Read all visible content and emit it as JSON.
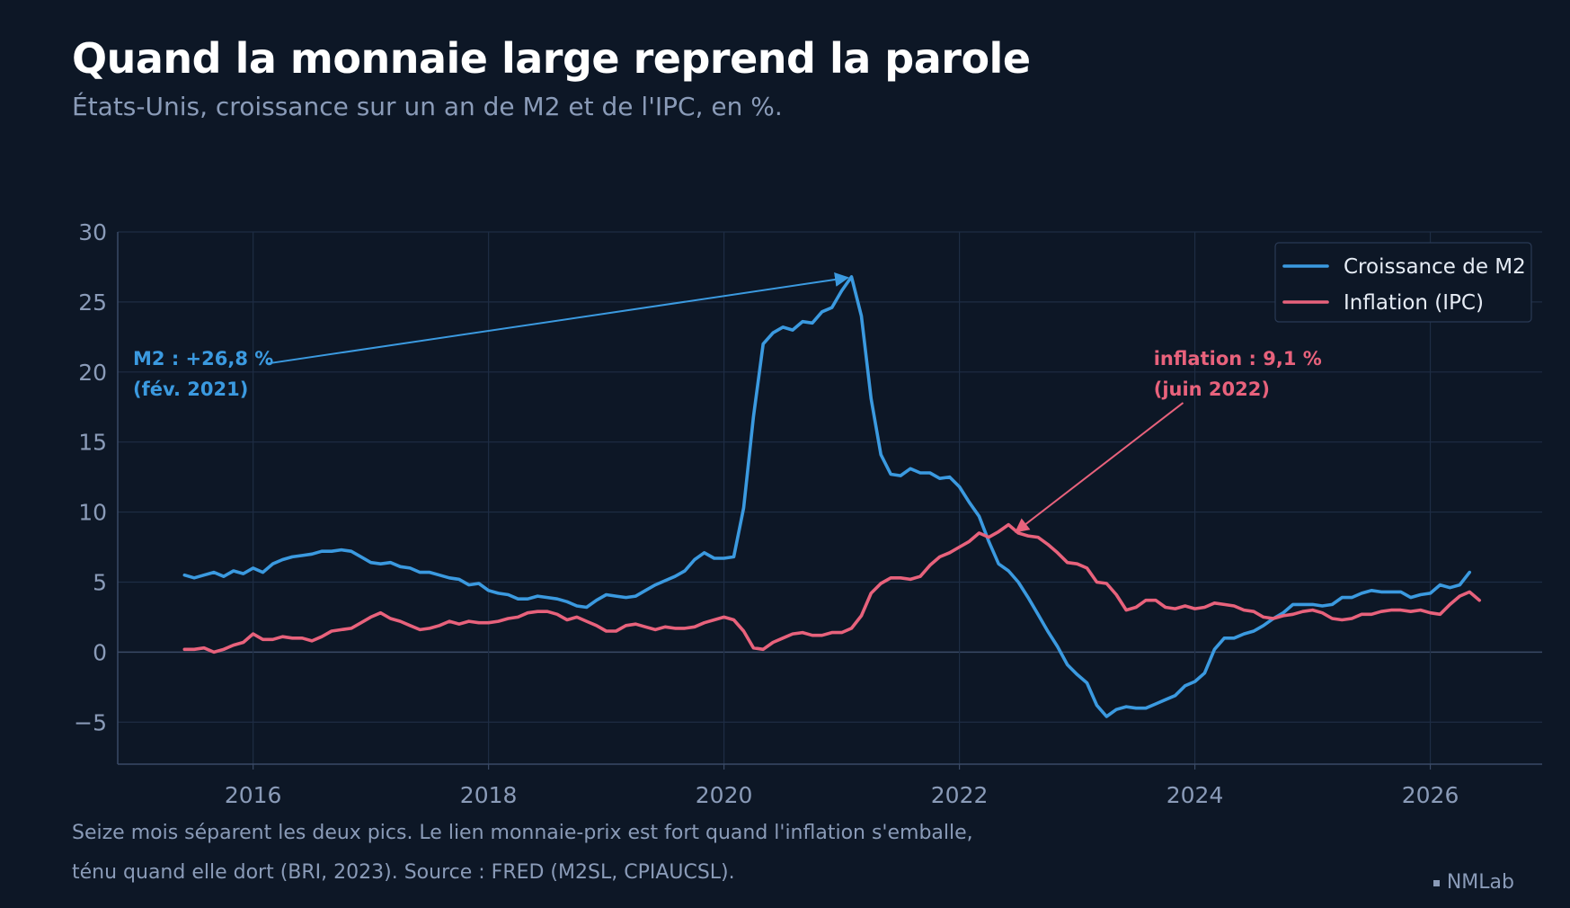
{
  "header": {
    "title": "Quand la monnaie large reprend la parole",
    "subtitle": "États-Unis, croissance sur un an de M2 et de l'IPC, en %."
  },
  "footer": {
    "note_line1": "Seize mois séparent les deux pics. Le lien monnaie-prix est fort quand l'inflation s'emballe,",
    "note_line2": "ténu quand elle dort (BRI, 2023). Source : FRED (M2SL, CPIAUCSL).",
    "brand": "NMLab"
  },
  "colors": {
    "background": "#0d1726",
    "grid": "#1e2d44",
    "axis": "#3a4a66",
    "tick_text": "#8a9bb8",
    "m2": "#3b9ae0",
    "cpi": "#e8627c"
  },
  "chart_data": {
    "type": "line",
    "title": "",
    "xlabel": "",
    "ylabel": "",
    "xlim": [
      2014.85,
      2026.95
    ],
    "ylim": [
      -8,
      30
    ],
    "x_ticks": [
      2016,
      2018,
      2020,
      2022,
      2024,
      2026
    ],
    "y_ticks": [
      -5,
      0,
      5,
      10,
      15,
      20,
      25,
      30
    ],
    "y_tick_labels": [
      "−5",
      "0",
      "5",
      "10",
      "15",
      "20",
      "25",
      "30"
    ],
    "grid": true,
    "legend_position": "top-right",
    "series": [
      {
        "name": "Croissance de M2",
        "color": "#3b9ae0",
        "points": [
          [
            2015.417,
            5.5
          ],
          [
            2015.5,
            5.3
          ],
          [
            2015.583,
            5.5
          ],
          [
            2015.667,
            5.7
          ],
          [
            2015.75,
            5.4
          ],
          [
            2015.833,
            5.8
          ],
          [
            2015.917,
            5.6
          ],
          [
            2016.0,
            6.0
          ],
          [
            2016.083,
            5.7
          ],
          [
            2016.167,
            6.3
          ],
          [
            2016.25,
            6.6
          ],
          [
            2016.333,
            6.8
          ],
          [
            2016.417,
            6.9
          ],
          [
            2016.5,
            7.0
          ],
          [
            2016.583,
            7.2
          ],
          [
            2016.667,
            7.2
          ],
          [
            2016.75,
            7.3
          ],
          [
            2016.833,
            7.2
          ],
          [
            2016.917,
            6.8
          ],
          [
            2017.0,
            6.4
          ],
          [
            2017.083,
            6.3
          ],
          [
            2017.167,
            6.4
          ],
          [
            2017.25,
            6.1
          ],
          [
            2017.333,
            6.0
          ],
          [
            2017.417,
            5.7
          ],
          [
            2017.5,
            5.7
          ],
          [
            2017.583,
            5.5
          ],
          [
            2017.667,
            5.3
          ],
          [
            2017.75,
            5.2
          ],
          [
            2017.833,
            4.8
          ],
          [
            2017.917,
            4.9
          ],
          [
            2018.0,
            4.4
          ],
          [
            2018.083,
            4.2
          ],
          [
            2018.167,
            4.1
          ],
          [
            2018.25,
            3.8
          ],
          [
            2018.333,
            3.8
          ],
          [
            2018.417,
            4.0
          ],
          [
            2018.5,
            3.9
          ],
          [
            2018.583,
            3.8
          ],
          [
            2018.667,
            3.6
          ],
          [
            2018.75,
            3.3
          ],
          [
            2018.833,
            3.2
          ],
          [
            2018.917,
            3.7
          ],
          [
            2019.0,
            4.1
          ],
          [
            2019.083,
            4.0
          ],
          [
            2019.167,
            3.9
          ],
          [
            2019.25,
            4.0
          ],
          [
            2019.333,
            4.4
          ],
          [
            2019.417,
            4.8
          ],
          [
            2019.5,
            5.1
          ],
          [
            2019.583,
            5.4
          ],
          [
            2019.667,
            5.8
          ],
          [
            2019.75,
            6.6
          ],
          [
            2019.833,
            7.1
          ],
          [
            2019.917,
            6.7
          ],
          [
            2020.0,
            6.7
          ],
          [
            2020.083,
            6.8
          ],
          [
            2020.167,
            10.3
          ],
          [
            2020.25,
            16.8
          ],
          [
            2020.333,
            22.0
          ],
          [
            2020.417,
            22.8
          ],
          [
            2020.5,
            23.2
          ],
          [
            2020.583,
            23.0
          ],
          [
            2020.667,
            23.6
          ],
          [
            2020.75,
            23.5
          ],
          [
            2020.833,
            24.3
          ],
          [
            2020.917,
            24.6
          ],
          [
            2021.0,
            25.8
          ],
          [
            2021.083,
            26.8
          ],
          [
            2021.167,
            24.0
          ],
          [
            2021.25,
            18.1
          ],
          [
            2021.333,
            14.1
          ],
          [
            2021.417,
            12.7
          ],
          [
            2021.5,
            12.6
          ],
          [
            2021.583,
            13.1
          ],
          [
            2021.667,
            12.8
          ],
          [
            2021.75,
            12.8
          ],
          [
            2021.833,
            12.4
          ],
          [
            2021.917,
            12.5
          ],
          [
            2022.0,
            11.8
          ],
          [
            2022.083,
            10.7
          ],
          [
            2022.167,
            9.7
          ],
          [
            2022.25,
            7.9
          ],
          [
            2022.333,
            6.3
          ],
          [
            2022.417,
            5.8
          ],
          [
            2022.5,
            5.0
          ],
          [
            2022.583,
            3.9
          ],
          [
            2022.667,
            2.7
          ],
          [
            2022.75,
            1.5
          ],
          [
            2022.833,
            0.4
          ],
          [
            2022.917,
            -0.9
          ],
          [
            2023.0,
            -1.6
          ],
          [
            2023.083,
            -2.2
          ],
          [
            2023.167,
            -3.8
          ],
          [
            2023.25,
            -4.6
          ],
          [
            2023.333,
            -4.1
          ],
          [
            2023.417,
            -3.9
          ],
          [
            2023.5,
            -4.0
          ],
          [
            2023.583,
            -4.0
          ],
          [
            2023.667,
            -3.7
          ],
          [
            2023.75,
            -3.4
          ],
          [
            2023.833,
            -3.1
          ],
          [
            2023.917,
            -2.4
          ],
          [
            2024.0,
            -2.1
          ],
          [
            2024.083,
            -1.5
          ],
          [
            2024.167,
            0.2
          ],
          [
            2024.25,
            1.0
          ],
          [
            2024.333,
            1.0
          ],
          [
            2024.417,
            1.3
          ],
          [
            2024.5,
            1.5
          ],
          [
            2024.583,
            1.9
          ],
          [
            2024.667,
            2.4
          ],
          [
            2024.75,
            2.8
          ],
          [
            2024.833,
            3.4
          ],
          [
            2024.917,
            3.4
          ],
          [
            2025.0,
            3.4
          ],
          [
            2025.083,
            3.3
          ],
          [
            2025.167,
            3.4
          ],
          [
            2025.25,
            3.9
          ],
          [
            2025.333,
            3.9
          ],
          [
            2025.417,
            4.2
          ],
          [
            2025.5,
            4.4
          ],
          [
            2025.583,
            4.3
          ],
          [
            2025.667,
            4.3
          ],
          [
            2025.75,
            4.3
          ],
          [
            2025.833,
            3.9
          ],
          [
            2025.917,
            4.1
          ],
          [
            2026.0,
            4.2
          ],
          [
            2026.083,
            4.8
          ],
          [
            2026.167,
            4.6
          ],
          [
            2026.25,
            4.8
          ],
          [
            2026.333,
            5.7
          ]
        ]
      },
      {
        "name": "Inflation (IPC)",
        "color": "#e8627c",
        "points": [
          [
            2015.417,
            0.2
          ],
          [
            2015.5,
            0.2
          ],
          [
            2015.583,
            0.3
          ],
          [
            2015.667,
            0.0
          ],
          [
            2015.75,
            0.2
          ],
          [
            2015.833,
            0.5
          ],
          [
            2015.917,
            0.7
          ],
          [
            2016.0,
            1.3
          ],
          [
            2016.083,
            0.9
          ],
          [
            2016.167,
            0.9
          ],
          [
            2016.25,
            1.1
          ],
          [
            2016.333,
            1.0
          ],
          [
            2016.417,
            1.0
          ],
          [
            2016.5,
            0.8
          ],
          [
            2016.583,
            1.1
          ],
          [
            2016.667,
            1.5
          ],
          [
            2016.75,
            1.6
          ],
          [
            2016.833,
            1.7
          ],
          [
            2016.917,
            2.1
          ],
          [
            2017.0,
            2.5
          ],
          [
            2017.083,
            2.8
          ],
          [
            2017.167,
            2.4
          ],
          [
            2017.25,
            2.2
          ],
          [
            2017.333,
            1.9
          ],
          [
            2017.417,
            1.6
          ],
          [
            2017.5,
            1.7
          ],
          [
            2017.583,
            1.9
          ],
          [
            2017.667,
            2.2
          ],
          [
            2017.75,
            2.0
          ],
          [
            2017.833,
            2.2
          ],
          [
            2017.917,
            2.1
          ],
          [
            2018.0,
            2.1
          ],
          [
            2018.083,
            2.2
          ],
          [
            2018.167,
            2.4
          ],
          [
            2018.25,
            2.5
          ],
          [
            2018.333,
            2.8
          ],
          [
            2018.417,
            2.9
          ],
          [
            2018.5,
            2.9
          ],
          [
            2018.583,
            2.7
          ],
          [
            2018.667,
            2.3
          ],
          [
            2018.75,
            2.5
          ],
          [
            2018.833,
            2.2
          ],
          [
            2018.917,
            1.9
          ],
          [
            2019.0,
            1.5
          ],
          [
            2019.083,
            1.5
          ],
          [
            2019.167,
            1.9
          ],
          [
            2019.25,
            2.0
          ],
          [
            2019.333,
            1.8
          ],
          [
            2019.417,
            1.6
          ],
          [
            2019.5,
            1.8
          ],
          [
            2019.583,
            1.7
          ],
          [
            2019.667,
            1.7
          ],
          [
            2019.75,
            1.8
          ],
          [
            2019.833,
            2.1
          ],
          [
            2019.917,
            2.3
          ],
          [
            2020.0,
            2.5
          ],
          [
            2020.083,
            2.3
          ],
          [
            2020.167,
            1.5
          ],
          [
            2020.25,
            0.3
          ],
          [
            2020.333,
            0.2
          ],
          [
            2020.417,
            0.7
          ],
          [
            2020.5,
            1.0
          ],
          [
            2020.583,
            1.3
          ],
          [
            2020.667,
            1.4
          ],
          [
            2020.75,
            1.2
          ],
          [
            2020.833,
            1.2
          ],
          [
            2020.917,
            1.4
          ],
          [
            2021.0,
            1.4
          ],
          [
            2021.083,
            1.7
          ],
          [
            2021.167,
            2.6
          ],
          [
            2021.25,
            4.2
          ],
          [
            2021.333,
            4.9
          ],
          [
            2021.417,
            5.3
          ],
          [
            2021.5,
            5.3
          ],
          [
            2021.583,
            5.2
          ],
          [
            2021.667,
            5.4
          ],
          [
            2021.75,
            6.2
          ],
          [
            2021.833,
            6.8
          ],
          [
            2021.917,
            7.1
          ],
          [
            2022.0,
            7.5
          ],
          [
            2022.083,
            7.9
          ],
          [
            2022.167,
            8.5
          ],
          [
            2022.25,
            8.2
          ],
          [
            2022.333,
            8.6
          ],
          [
            2022.417,
            9.1
          ],
          [
            2022.5,
            8.5
          ],
          [
            2022.583,
            8.3
          ],
          [
            2022.667,
            8.2
          ],
          [
            2022.75,
            7.7
          ],
          [
            2022.833,
            7.1
          ],
          [
            2022.917,
            6.4
          ],
          [
            2023.0,
            6.3
          ],
          [
            2023.083,
            6.0
          ],
          [
            2023.167,
            5.0
          ],
          [
            2023.25,
            4.9
          ],
          [
            2023.333,
            4.1
          ],
          [
            2023.417,
            3.0
          ],
          [
            2023.5,
            3.2
          ],
          [
            2023.583,
            3.7
          ],
          [
            2023.667,
            3.7
          ],
          [
            2023.75,
            3.2
          ],
          [
            2023.833,
            3.1
          ],
          [
            2023.917,
            3.3
          ],
          [
            2024.0,
            3.1
          ],
          [
            2024.083,
            3.2
          ],
          [
            2024.167,
            3.5
          ],
          [
            2024.25,
            3.4
          ],
          [
            2024.333,
            3.3
          ],
          [
            2024.417,
            3.0
          ],
          [
            2024.5,
            2.9
          ],
          [
            2024.583,
            2.5
          ],
          [
            2024.667,
            2.4
          ],
          [
            2024.75,
            2.6
          ],
          [
            2024.833,
            2.7
          ],
          [
            2024.917,
            2.9
          ],
          [
            2025.0,
            3.0
          ],
          [
            2025.083,
            2.8
          ],
          [
            2025.167,
            2.4
          ],
          [
            2025.25,
            2.3
          ],
          [
            2025.333,
            2.4
          ],
          [
            2025.417,
            2.7
          ],
          [
            2025.5,
            2.7
          ],
          [
            2025.583,
            2.9
          ],
          [
            2025.667,
            3.0
          ],
          [
            2025.75,
            3.0
          ],
          [
            2025.833,
            2.9
          ],
          [
            2025.917,
            3.0
          ],
          [
            2026.0,
            2.8
          ],
          [
            2026.083,
            2.7
          ],
          [
            2026.167,
            3.4
          ],
          [
            2026.25,
            4.0
          ],
          [
            2026.333,
            4.3
          ],
          [
            2026.417,
            3.7
          ]
        ]
      }
    ],
    "annotations": [
      {
        "id": "m2",
        "lines": [
          "M2 : +26,8 %",
          "(fév. 2021)"
        ],
        "color": "#3b9ae0",
        "target": [
          2021.083,
          26.8
        ],
        "text_anchor_data": [
          2014.98,
          20.5
        ],
        "arrow_start_data": [
          2016.12,
          20.6
        ]
      },
      {
        "id": "cpi",
        "lines": [
          "inflation : 9,1 %",
          "(juin 2022)"
        ],
        "color": "#e8627c",
        "target": [
          2022.417,
          9.1
        ],
        "text_anchor_data": [
          2023.65,
          20.5
        ],
        "arrow_start_data": [
          2023.9,
          17.8
        ]
      }
    ]
  }
}
